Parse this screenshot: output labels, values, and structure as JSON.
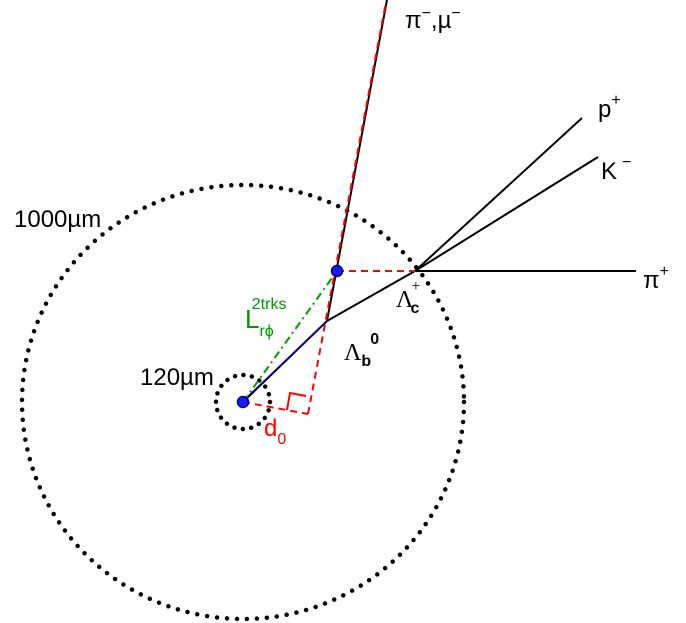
{
  "labels": {
    "circle_outer": "1000µm",
    "circle_inner": "120µm",
    "track_pi_mu": {
      "main": "π",
      "sup1": "−",
      "comma": ",",
      "main2": "µ",
      "sup2": "−"
    },
    "track_p": {
      "main": "p",
      "sup": "+"
    },
    "track_K": {
      "main": "K",
      "sup": "−"
    },
    "track_pi_plus": {
      "main": "π",
      "sup": "+"
    },
    "lambda_c": {
      "main": "Λ",
      "sup": "+",
      "sub": "c"
    },
    "lambda_b": {
      "main": "Λ",
      "sub": "b",
      "sup": "0"
    },
    "L_rphi": {
      "main": "L",
      "sup": "2trks",
      "sub": "rϕ"
    },
    "d0": {
      "main": "d",
      "sub": "0"
    }
  },
  "colors": {
    "track": "#000000",
    "dashed_red": "#ff0000",
    "dashdot_green": "#00a000",
    "vertex_fill": "#1a1aff",
    "vertex_stroke": "#000080",
    "blue_line": "#0000c0",
    "label_green": "#009900",
    "label_red": "#ff0000"
  }
}
